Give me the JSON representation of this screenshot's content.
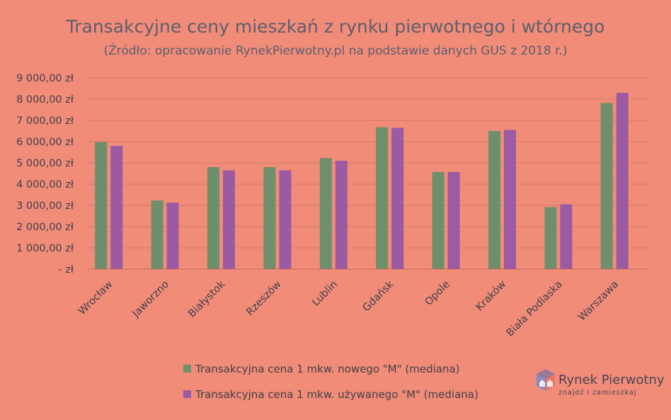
{
  "chart_data": {
    "type": "bar",
    "title": "Transakcyjne ceny mieszkań z rynku pierwotnego i wtórnego",
    "subtitle": "(Źródło: opracowanie RynekPierwotny.pl na podstawie danych GUS z 2018 r.)",
    "categories": [
      "Wrocław",
      "Jaworzno",
      "Białystok",
      "Rzeszów",
      "Lublin",
      "Gdańsk",
      "Opole",
      "Kraków",
      "Biała Podlaska",
      "Warszawa"
    ],
    "series": [
      {
        "name": "Transakcyjna cena 1 mkw. nowego \"M\" (mediana)",
        "color": "#6e8f6c",
        "values": [
          5980,
          3230,
          4800,
          4800,
          5230,
          6680,
          4570,
          6500,
          2920,
          7820
        ]
      },
      {
        "name": "Transakcyjna cena 1 mkw. używanego \"M\" (mediana)",
        "color": "#9c5aa3",
        "values": [
          5800,
          3130,
          4650,
          4650,
          5100,
          6650,
          4570,
          6550,
          3050,
          8300
        ]
      }
    ],
    "ylim": [
      0,
      9000
    ],
    "yticks": [
      0,
      1000,
      2000,
      3000,
      4000,
      5000,
      6000,
      7000,
      8000,
      9000
    ],
    "ytick_labels": [
      "-   zł",
      "1 000,00 zł",
      "2 000,00 zł",
      "3 000,00 zł",
      "4 000,00 zł",
      "5 000,00 zł",
      "6 000,00 zł",
      "7 000,00 zł",
      "8 000,00 zł",
      "9 000,00 zł"
    ],
    "grid": true,
    "legend_position": "bottom"
  },
  "logo": {
    "name": "Rynek Pierwotny",
    "tagline": "znajdź i zamieszkaj"
  },
  "colors": {
    "background": "#f08c78",
    "gridline": "#d57a6a",
    "axis": "#c86e5e"
  }
}
